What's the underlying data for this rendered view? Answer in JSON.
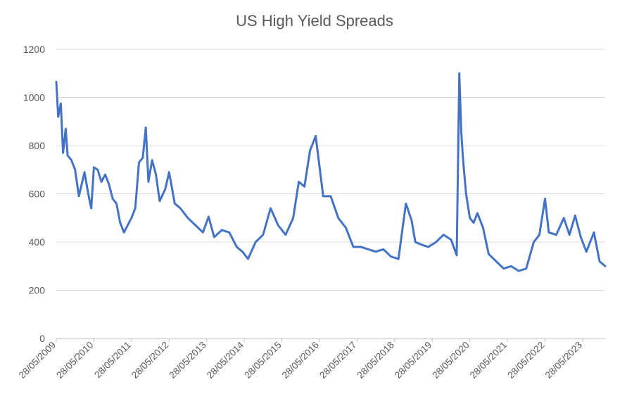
{
  "chart_data": {
    "type": "line",
    "title": "US High Yield Spreads",
    "xlabel": "",
    "ylabel": "",
    "ylim": [
      0,
      1200
    ],
    "yticks": [
      0,
      200,
      400,
      600,
      800,
      1000,
      1200
    ],
    "ytick_labels": [
      "0",
      "200",
      "400",
      "600",
      "800",
      "1000",
      "1200"
    ],
    "xlim": [
      2009.4,
      2024.0
    ],
    "xticks": [
      2009.4,
      2010.4,
      2011.4,
      2012.4,
      2013.4,
      2014.4,
      2015.4,
      2016.4,
      2017.4,
      2018.4,
      2019.4,
      2020.4,
      2021.4,
      2022.4,
      2023.4
    ],
    "xtick_labels": [
      "28/05/2009",
      "28/05/2010",
      "28/05/2011",
      "28/05/2012",
      "28/05/2013",
      "28/05/2014",
      "28/05/2015",
      "28/05/2016",
      "28/05/2017",
      "28/05/2018",
      "28/05/2019",
      "28/05/2020",
      "28/05/2021",
      "28/05/2022",
      "28/05/2023"
    ],
    "grid": true,
    "legend": "none",
    "color": "#4472c4",
    "series": [
      {
        "name": "US High Yield Spreads",
        "x": [
          2009.4,
          2009.45,
          2009.52,
          2009.58,
          2009.65,
          2009.7,
          2009.8,
          2009.9,
          2010.0,
          2010.15,
          2010.25,
          2010.33,
          2010.4,
          2010.5,
          2010.6,
          2010.7,
          2010.8,
          2010.9,
          2011.0,
          2011.1,
          2011.2,
          2011.3,
          2011.4,
          2011.5,
          2011.6,
          2011.7,
          2011.78,
          2011.85,
          2011.95,
          2012.05,
          2012.15,
          2012.3,
          2012.4,
          2012.55,
          2012.7,
          2012.9,
          2013.1,
          2013.3,
          2013.45,
          2013.6,
          2013.8,
          2014.0,
          2014.2,
          2014.35,
          2014.5,
          2014.7,
          2014.9,
          2015.1,
          2015.3,
          2015.5,
          2015.7,
          2015.85,
          2016.0,
          2016.15,
          2016.3,
          2016.5,
          2016.7,
          2016.9,
          2017.1,
          2017.3,
          2017.5,
          2017.7,
          2017.9,
          2018.1,
          2018.3,
          2018.5,
          2018.7,
          2018.85,
          2018.95,
          2019.1,
          2019.3,
          2019.5,
          2019.7,
          2019.9,
          2020.05,
          2020.12,
          2020.17,
          2020.22,
          2020.3,
          2020.4,
          2020.5,
          2020.6,
          2020.75,
          2020.9,
          2021.1,
          2021.3,
          2021.5,
          2021.7,
          2021.9,
          2022.1,
          2022.25,
          2022.4,
          2022.5,
          2022.7,
          2022.9,
          2023.05,
          2023.2,
          2023.35,
          2023.5,
          2023.7,
          2023.85,
          2024.0
        ],
        "y": [
          1065,
          920,
          975,
          770,
          870,
          760,
          740,
          700,
          590,
          690,
          600,
          540,
          710,
          700,
          650,
          680,
          640,
          580,
          560,
          480,
          440,
          470,
          500,
          540,
          730,
          750,
          875,
          650,
          740,
          680,
          570,
          620,
          690,
          560,
          540,
          500,
          470,
          440,
          505,
          420,
          450,
          440,
          380,
          360,
          330,
          400,
          430,
          540,
          470,
          430,
          500,
          650,
          630,
          780,
          840,
          590,
          590,
          500,
          460,
          380,
          380,
          370,
          360,
          370,
          340,
          330,
          560,
          490,
          400,
          390,
          380,
          400,
          430,
          410,
          345,
          1100,
          860,
          740,
          600,
          500,
          480,
          520,
          460,
          350,
          320,
          290,
          300,
          280,
          290,
          400,
          430,
          580,
          440,
          430,
          500,
          430,
          510,
          420,
          360,
          440,
          320,
          300
        ]
      }
    ]
  }
}
